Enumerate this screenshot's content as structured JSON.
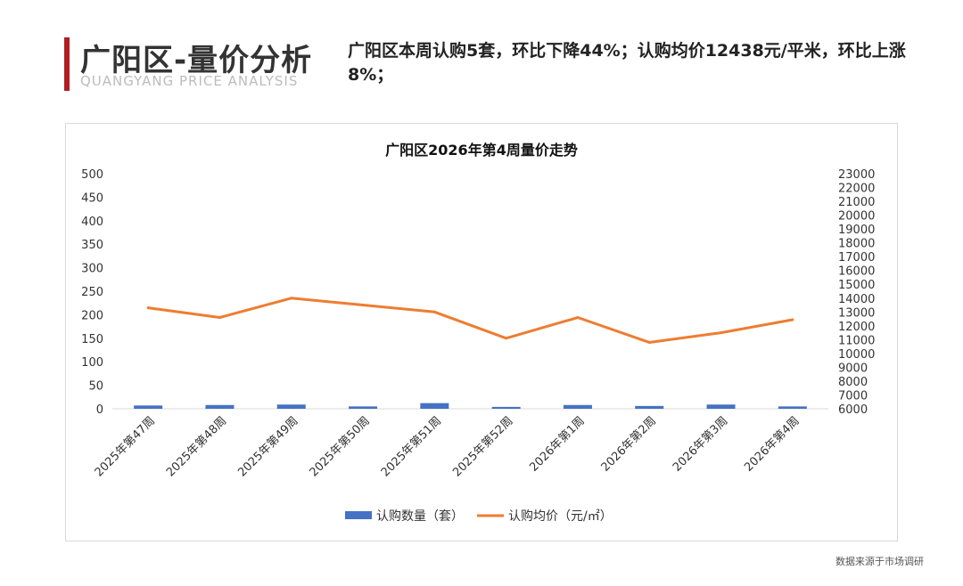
{
  "header": {
    "title": "广阳区-量价分析",
    "subtitle_en": "QUANGYANG PRICE ANALYSIS",
    "summary": "广阳区本周认购5套，环比下降44%；认购均价12438元/平米，环比上涨8%；"
  },
  "colors": {
    "accent": "#b01e23",
    "bar": "#4472c4",
    "line": "#ed7d31"
  },
  "footer": {
    "source": "数据来源于市场调研"
  },
  "chart_data": {
    "type": "bar",
    "title": "广阳区2026年第4周量价走势",
    "categories": [
      "2025年第47周",
      "2025年第48周",
      "2025年第49周",
      "2025年第50周",
      "2025年第51周",
      "2025年第52周",
      "2026年第1周",
      "2026年第2周",
      "2026年第3周",
      "2026年第4周"
    ],
    "series": [
      {
        "name": "认购数量（套）",
        "type": "bar",
        "axis": "left",
        "values": [
          7,
          8,
          9,
          5,
          12,
          4,
          8,
          6,
          9,
          5
        ]
      },
      {
        "name": "认购均价（元/㎡）",
        "type": "line",
        "axis": "right",
        "values": [
          13300,
          12600,
          14000,
          13500,
          13000,
          11100,
          12600,
          10800,
          11500,
          12438
        ]
      }
    ],
    "y_left": {
      "min": 0,
      "max": 500,
      "step": 50
    },
    "y_right": {
      "min": 6000,
      "max": 23000,
      "step": 1000
    },
    "grid": false,
    "legend_position": "bottom"
  }
}
